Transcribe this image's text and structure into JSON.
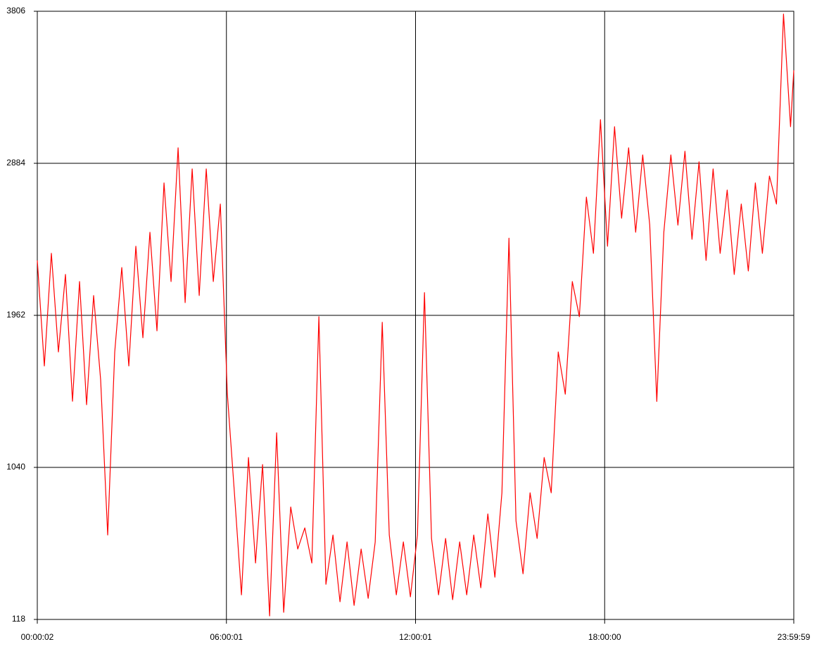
{
  "chart_data": {
    "type": "line",
    "x": [
      2,
      806,
      1610,
      2414,
      3218,
      4022,
      4826,
      5630,
      6434,
      7238,
      8042,
      8846,
      9650,
      10454,
      11258,
      12062,
      12866,
      13670,
      14474,
      15278,
      16082,
      16886,
      17690,
      18494,
      19298,
      20102,
      20906,
      21710,
      22514,
      23318,
      24122,
      24926,
      25730,
      26534,
      27338,
      28142,
      28946,
      29750,
      30554,
      31358,
      32162,
      32966,
      33770,
      34574,
      35378,
      36182,
      36986,
      37790,
      38594,
      39398,
      40202,
      41006,
      41810,
      42614,
      43418,
      44222,
      45026,
      45830,
      46634,
      47438,
      48242,
      49046,
      49850,
      50654,
      51458,
      52262,
      53066,
      53870,
      54674,
      55478,
      56282,
      57086,
      57890,
      58694,
      59498,
      60302,
      61106,
      61910,
      62714,
      63518,
      64322,
      65126,
      65930,
      66734,
      67538,
      68342,
      69146,
      69950,
      70754,
      71558,
      72362,
      73166,
      73970,
      74774,
      75578,
      76382,
      77186,
      77990,
      78794,
      79598,
      80402,
      81206,
      82010,
      82814,
      83618,
      84422,
      85226,
      86030,
      86399
    ],
    "series": [
      {
        "color": "#ff0000",
        "values": [
          2295,
          1655,
          2338,
          1740,
          2210,
          1441,
          2167,
          1420,
          2082,
          1570,
          630,
          1740,
          2252,
          1655,
          2381,
          1826,
          2466,
          1868,
          2765,
          2167,
          2978,
          2039,
          2850,
          2082,
          2850,
          2167,
          2637,
          1484,
          886,
          267,
          1100,
          460,
          1057,
          139,
          1250,
          161,
          800,
          545,
          673,
          460,
          1954,
          331,
          630,
          225,
          588,
          203,
          545,
          246,
          588,
          1920,
          630,
          267,
          588,
          255,
          630,
          2100,
          609,
          267,
          609,
          238,
          588,
          267,
          630,
          310,
          758,
          374,
          886,
          2430,
          716,
          395,
          886,
          609,
          1100,
          886,
          1740,
          1484,
          2167,
          1954,
          2679,
          2338,
          3149,
          2381,
          3106,
          2551,
          2978,
          2466,
          2935,
          2509,
          1440,
          2466,
          2935,
          2509,
          2957,
          2423,
          2893,
          2295,
          2850,
          2338,
          2722,
          2210,
          2637,
          2231,
          2765,
          2338,
          2807,
          2637,
          3789,
          3106,
          3448
        ]
      }
    ],
    "xlim": [
      2,
      86399
    ],
    "xticks": [
      {
        "value": 2,
        "label": "00:00:02"
      },
      {
        "value": 21601,
        "label": "06:00:01"
      },
      {
        "value": 43201,
        "label": "12:00:01"
      },
      {
        "value": 64800,
        "label": "18:00:00"
      },
      {
        "value": 86399,
        "label": "23:59:59"
      }
    ],
    "ylim": [
      118,
      3806
    ],
    "yticks": [
      118,
      1040,
      1962,
      2884,
      3806
    ],
    "grid": true
  }
}
